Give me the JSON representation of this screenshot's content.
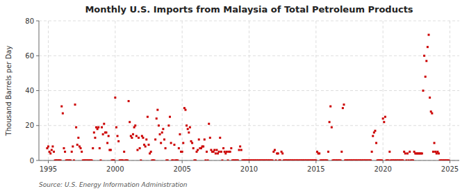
{
  "chart_data": {
    "type": "scatter",
    "title": "Monthly U.S. Imports from Malaysia of Total Petroleum Products",
    "y_label": "Thousand Barrels per Day",
    "annotations": [
      "Source: U.S. Energy Information Administration"
    ],
    "color": "#cc0000",
    "marker": "square",
    "grid": true,
    "xlim": [
      1994.3,
      2025.7
    ],
    "ylim": [
      0,
      80
    ],
    "xticks": [
      1995,
      2000,
      2005,
      2010,
      2015,
      2020,
      2025
    ],
    "yticks": [
      0,
      20,
      40,
      60,
      80
    ],
    "x": [
      1994.917,
      1995.0,
      1995.083,
      1995.167,
      1995.25,
      1995.333,
      1995.417,
      1995.5,
      1995.583,
      1995.667,
      1995.75,
      1995.833,
      1995.917,
      1996.0,
      1996.083,
      1996.167,
      1996.25,
      1996.333,
      1996.417,
      1996.5,
      1996.583,
      1996.667,
      1996.75,
      1996.833,
      1996.917,
      1997.0,
      1997.083,
      1997.167,
      1997.25,
      1997.333,
      1997.417,
      1997.5,
      1997.583,
      1997.667,
      1997.75,
      1997.833,
      1997.917,
      1998.0,
      1998.083,
      1998.167,
      1998.25,
      1998.333,
      1998.417,
      1998.5,
      1998.583,
      1998.667,
      1998.75,
      1998.833,
      1998.917,
      1999.0,
      1999.083,
      1999.167,
      1999.25,
      1999.333,
      1999.417,
      1999.5,
      1999.583,
      1999.667,
      1999.75,
      1999.833,
      1999.917,
      2000.0,
      2000.083,
      2000.167,
      2000.25,
      2000.333,
      2000.417,
      2000.5,
      2000.583,
      2000.667,
      2000.75,
      2000.833,
      2000.917,
      2001.0,
      2001.083,
      2001.167,
      2001.25,
      2001.333,
      2001.417,
      2001.5,
      2001.583,
      2001.667,
      2001.75,
      2001.833,
      2001.917,
      2002.0,
      2002.083,
      2002.167,
      2002.25,
      2002.333,
      2002.417,
      2002.5,
      2002.583,
      2002.667,
      2002.75,
      2002.833,
      2002.917,
      2003.0,
      2003.083,
      2003.167,
      2003.25,
      2003.333,
      2003.417,
      2003.5,
      2003.583,
      2003.667,
      2003.75,
      2003.833,
      2003.917,
      2004.0,
      2004.083,
      2004.167,
      2004.25,
      2004.333,
      2004.417,
      2004.5,
      2004.583,
      2004.667,
      2004.75,
      2004.833,
      2004.917,
      2005.0,
      2005.083,
      2005.167,
      2005.25,
      2005.333,
      2005.417,
      2005.5,
      2005.583,
      2005.667,
      2005.75,
      2005.833,
      2005.917,
      2006.0,
      2006.083,
      2006.167,
      2006.25,
      2006.333,
      2006.417,
      2006.5,
      2006.583,
      2006.667,
      2006.75,
      2006.833,
      2006.917,
      2007.0,
      2007.083,
      2007.167,
      2007.25,
      2007.333,
      2007.417,
      2007.5,
      2007.583,
      2007.667,
      2007.75,
      2007.833,
      2007.917,
      2008.0,
      2008.083,
      2008.167,
      2008.25,
      2008.333,
      2008.417,
      2008.5,
      2008.583,
      2008.667,
      2008.75,
      2008.833,
      2008.917,
      2009.0,
      2009.083,
      2009.167,
      2009.25,
      2009.333,
      2009.417,
      2009.5,
      2009.583,
      2009.667,
      2009.75,
      2009.833,
      2009.917,
      2010.0,
      2010.083,
      2010.167,
      2010.25,
      2010.333,
      2010.417,
      2010.5,
      2010.583,
      2010.667,
      2010.75,
      2010.833,
      2010.917,
      2011.0,
      2011.083,
      2011.167,
      2011.25,
      2011.333,
      2011.417,
      2011.5,
      2011.583,
      2011.667,
      2011.75,
      2011.833,
      2011.917,
      2012.0,
      2012.083,
      2012.167,
      2012.25,
      2012.333,
      2012.417,
      2012.5,
      2012.583,
      2012.667,
      2012.75,
      2012.833,
      2012.917,
      2013.0,
      2013.083,
      2013.167,
      2013.25,
      2013.333,
      2013.417,
      2013.5,
      2013.583,
      2013.667,
      2013.75,
      2013.833,
      2013.917,
      2014.0,
      2014.083,
      2014.167,
      2014.25,
      2014.333,
      2014.417,
      2014.5,
      2014.583,
      2014.667,
      2014.75,
      2014.833,
      2014.917,
      2015.0,
      2015.083,
      2015.167,
      2015.25,
      2015.333,
      2015.417,
      2015.5,
      2015.583,
      2015.667,
      2015.75,
      2015.833,
      2015.917,
      2016.0,
      2016.083,
      2016.167,
      2016.25,
      2016.333,
      2016.417,
      2016.5,
      2016.583,
      2016.667,
      2016.75,
      2016.833,
      2016.917,
      2017.0,
      2017.083,
      2017.167,
      2017.25,
      2017.333,
      2017.417,
      2017.5,
      2017.583,
      2017.667,
      2017.75,
      2017.833,
      2017.917,
      2018.0,
      2018.083,
      2018.167,
      2018.25,
      2018.333,
      2018.417,
      2018.5,
      2018.583,
      2018.667,
      2018.75,
      2018.833,
      2018.917,
      2019.0,
      2019.083,
      2019.167,
      2019.25,
      2019.333,
      2019.417,
      2019.5,
      2019.583,
      2019.667,
      2019.75,
      2019.833,
      2019.917,
      2020.0,
      2020.083,
      2020.167,
      2020.25,
      2020.333,
      2020.417,
      2020.5,
      2020.583,
      2020.667,
      2020.75,
      2020.833,
      2020.917,
      2021.0,
      2021.083,
      2021.167,
      2021.25,
      2021.333,
      2021.417,
      2021.5,
      2021.583,
      2021.667,
      2021.75,
      2021.833,
      2021.917,
      2022.0,
      2022.083,
      2022.167,
      2022.25,
      2022.333,
      2022.417,
      2022.5,
      2022.583,
      2022.667,
      2022.75,
      2022.833,
      2022.917,
      2023.0,
      2023.083,
      2023.167,
      2023.25,
      2023.333,
      2023.417,
      2023.5,
      2023.583,
      2023.667,
      2023.75,
      2023.833,
      2023.917,
      2024.0,
      2024.083,
      2024.167,
      2024.25,
      2024.333,
      2024.417,
      2024.5,
      2024.583,
      2024.667,
      2024.75,
      2024.833,
      2024.917
    ],
    "values": [
      7,
      8,
      5,
      4,
      6,
      8,
      5,
      0,
      0,
      0,
      0,
      0,
      0,
      31,
      27,
      7,
      5,
      0,
      0,
      0,
      0,
      0,
      5,
      8,
      0,
      32,
      19,
      9,
      13,
      8,
      7,
      5,
      0,
      0,
      0,
      0,
      0,
      0,
      0,
      0,
      0,
      7,
      16,
      13,
      19,
      18,
      19,
      7,
      0,
      19,
      15,
      21,
      16,
      16,
      10,
      14,
      6,
      6,
      0,
      0,
      0,
      36,
      19,
      14,
      11,
      0,
      0,
      0,
      0,
      5,
      0,
      0,
      0,
      34,
      22,
      14,
      13,
      15,
      19,
      20,
      14,
      6,
      13,
      7,
      0,
      14,
      13,
      9,
      8,
      12,
      25,
      9,
      4,
      5,
      0,
      0,
      0,
      12,
      24,
      29,
      20,
      15,
      10,
      16,
      18,
      12,
      7,
      0,
      0,
      20,
      25,
      10,
      0,
      0,
      9,
      0,
      0,
      0,
      7,
      15,
      5,
      5,
      10,
      30,
      29,
      20,
      18,
      16,
      19,
      11,
      10,
      7,
      0,
      0,
      5,
      6,
      12,
      7,
      7,
      8,
      8,
      12,
      0,
      5,
      0,
      21,
      13,
      6,
      5,
      5,
      6,
      4,
      6,
      4,
      5,
      13,
      5,
      0,
      7,
      5,
      4,
      5,
      0,
      5,
      5,
      7,
      0,
      0,
      0,
      0,
      0,
      0,
      6,
      8,
      6,
      0,
      0,
      0,
      0,
      0,
      0,
      0,
      0,
      0,
      0,
      0,
      0,
      0,
      0,
      0,
      0,
      0,
      0,
      0,
      0,
      0,
      0,
      0,
      0,
      0,
      0,
      0,
      0,
      5,
      6,
      0,
      4,
      4,
      0,
      0,
      5,
      4,
      0,
      0,
      0,
      0,
      0,
      0,
      0,
      0,
      0,
      0,
      0,
      0,
      0,
      0,
      0,
      0,
      0,
      0,
      0,
      0,
      0,
      0,
      0,
      0,
      0,
      0,
      0,
      0,
      0,
      0,
      5,
      4,
      4,
      0,
      0,
      0,
      0,
      0,
      0,
      0,
      5,
      22,
      31,
      19,
      0,
      0,
      0,
      0,
      0,
      0,
      0,
      0,
      5,
      30,
      32,
      0,
      0,
      0,
      0,
      0,
      0,
      0,
      0,
      0,
      0,
      0,
      0,
      0,
      0,
      0,
      0,
      0,
      0,
      0,
      0,
      0,
      0,
      0,
      0,
      5,
      14,
      16,
      17,
      10,
      0,
      0,
      0,
      0,
      0,
      24,
      22,
      25,
      0,
      0,
      0,
      5,
      0,
      0,
      0,
      0,
      0,
      0,
      0,
      0,
      0,
      0,
      0,
      0,
      5,
      4,
      0,
      4,
      0,
      5,
      0,
      0,
      0,
      5,
      4,
      4,
      4,
      4,
      4,
      4,
      4,
      40,
      60,
      48,
      57,
      65,
      72,
      36,
      28,
      27,
      5,
      10,
      5,
      4,
      5,
      4,
      0,
      0,
      0,
      0,
      0,
      0,
      0,
      0,
      0
    ]
  }
}
